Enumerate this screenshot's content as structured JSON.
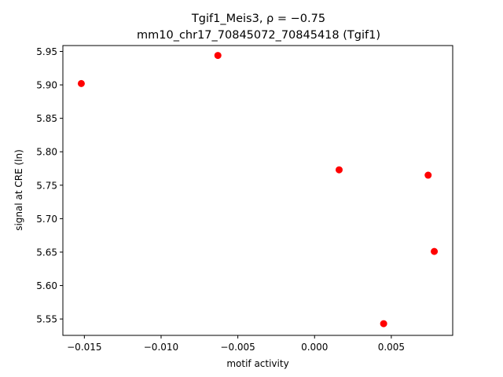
{
  "chart_data": {
    "type": "scatter",
    "title": "Tgif1_Meis3, ρ = −0.75",
    "subtitle": "mm10_chr17_70845072_70845418 (Tgif1)",
    "xlabel": "motif activity",
    "ylabel": "signal at CRE (ln)",
    "xlim": [
      -0.0164,
      0.009
    ],
    "ylim": [
      5.5255,
      5.9588
    ],
    "x_ticks": [
      -0.015,
      -0.01,
      -0.005,
      0.0,
      0.005
    ],
    "x_tick_labels": [
      "−0.015",
      "−0.010",
      "−0.005",
      "0.000",
      "0.005"
    ],
    "y_ticks": [
      5.55,
      5.6,
      5.65,
      5.7,
      5.75,
      5.8,
      5.85,
      5.9,
      5.95
    ],
    "y_tick_labels": [
      "5.55",
      "5.60",
      "5.65",
      "5.70",
      "5.75",
      "5.80",
      "5.85",
      "5.90",
      "5.95"
    ],
    "grid": false,
    "marker_color": "#ff0000",
    "points": [
      {
        "x": -0.0152,
        "y": 5.902
      },
      {
        "x": -0.0063,
        "y": 5.944
      },
      {
        "x": 0.0016,
        "y": 5.773
      },
      {
        "x": 0.0074,
        "y": 5.765
      },
      {
        "x": 0.0078,
        "y": 5.651
      },
      {
        "x": 0.0045,
        "y": 5.543
      }
    ]
  }
}
